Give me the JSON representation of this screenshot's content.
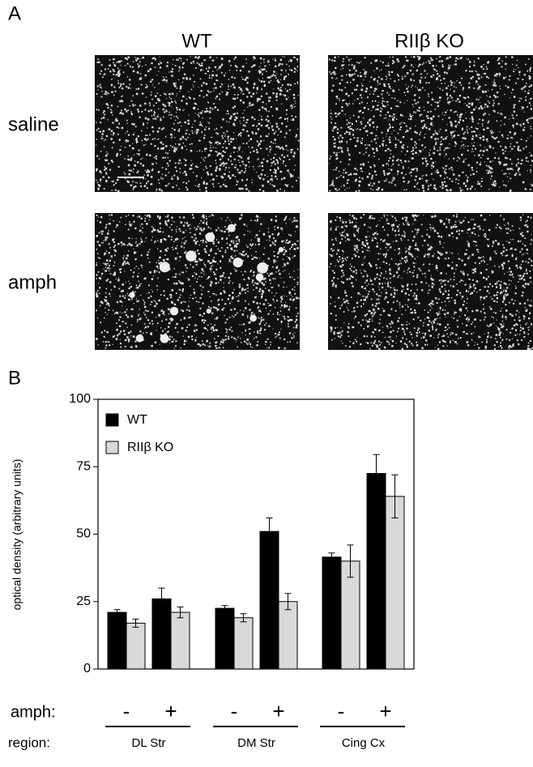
{
  "panel_a": {
    "label": "A",
    "columns": [
      "WT",
      "RIIβ KO"
    ],
    "rows": [
      "saline",
      "amph"
    ]
  },
  "panel_b_label": "B",
  "chart_data": {
    "type": "bar",
    "y_label": "optical density (arbitrary units)",
    "categories": [
      "-",
      "+",
      "-",
      "+",
      "-",
      "+"
    ],
    "category_row_label": "amph:",
    "groups": [
      "DL Str",
      "DM Str",
      "Cing Cx"
    ],
    "group_row_label": "region:",
    "series": [
      {
        "name": "WT",
        "color": "#000000",
        "values": [
          21,
          26,
          22.5,
          51,
          41.5,
          72.5
        ],
        "errors": [
          1,
          4,
          1,
          5,
          1.5,
          7
        ]
      },
      {
        "name": "RIIβ KO",
        "color": "#d9d9d9",
        "values": [
          17,
          21,
          19,
          25,
          40,
          64
        ],
        "errors": [
          1.5,
          2,
          1.5,
          3,
          6,
          8
        ]
      }
    ],
    "ylim": [
      0,
      100
    ],
    "yticks": [
      0,
      25,
      50,
      75,
      100
    ],
    "legend": "upper left"
  }
}
